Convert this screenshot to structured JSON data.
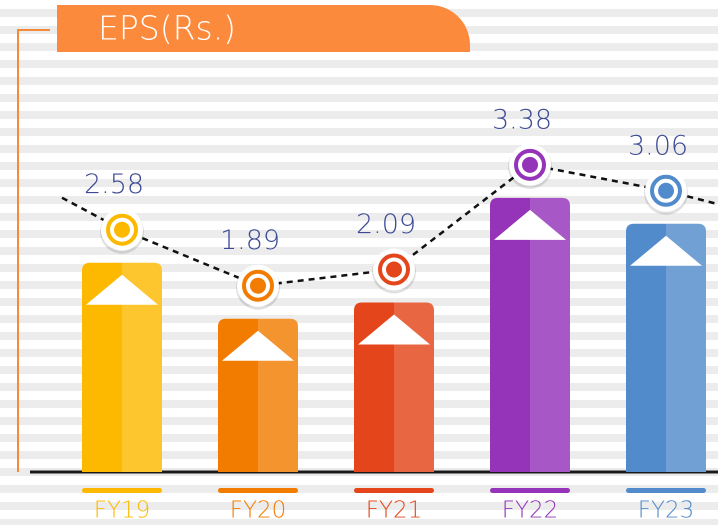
{
  "chart_data": {
    "type": "bar",
    "title": "EPS(Rs.)",
    "categories": [
      "FY19",
      "FY20",
      "FY21",
      "FY22",
      "FY23"
    ],
    "values": [
      2.58,
      1.89,
      2.09,
      3.38,
      3.06
    ],
    "colors": [
      "#fdb900",
      "#f27c00",
      "#e4451a",
      "#9533b9",
      "#528bcc"
    ],
    "ylim": [
      0,
      3.6
    ]
  }
}
